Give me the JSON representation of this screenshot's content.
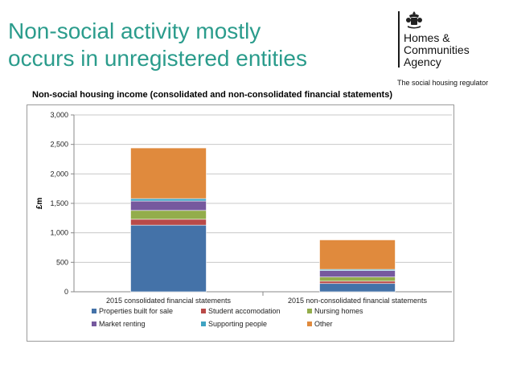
{
  "slide": {
    "title_line1": "Non-social activity mostly",
    "title_line2": "occurs in unregistered entities"
  },
  "logo": {
    "line1": "Homes &",
    "line2": "Communities",
    "line3": "Agency",
    "tagline": "The social housing regulator",
    "crest_icon": "royal-crest-icon"
  },
  "colors": {
    "title": "#2b9c8c"
  },
  "chart_data": {
    "type": "bar",
    "stacked": true,
    "title": "Non-social housing income (consolidated and non-consolidated financial statements)",
    "ylabel": "£m",
    "xlabel": "",
    "ylim": [
      0,
      3000
    ],
    "yticks": [
      0,
      500,
      1000,
      1500,
      2000,
      2500,
      3000
    ],
    "ytick_labels": [
      "0",
      "500",
      "1,000",
      "1,500",
      "2,000",
      "2,500",
      "3,000"
    ],
    "grid": true,
    "legend_position": "bottom",
    "categories": [
      "2015 consolidated financial statements",
      "2015 non-consolidated financial statements"
    ],
    "series": [
      {
        "name": "Properties built for sale",
        "color": "#4472a8",
        "values": [
          1130,
          140
        ]
      },
      {
        "name": "Student accomodation",
        "color": "#b94a48",
        "values": [
          100,
          40
        ]
      },
      {
        "name": "Nursing homes",
        "color": "#93ad4b",
        "values": [
          150,
          70
        ]
      },
      {
        "name": "Market renting",
        "color": "#76599e",
        "values": [
          160,
          110
        ]
      },
      {
        "name": "Supporting people",
        "color": "#3fa3c2",
        "values": [
          40,
          20
        ]
      },
      {
        "name": "Other",
        "color": "#e08a3d",
        "values": [
          860,
          500
        ]
      }
    ]
  }
}
